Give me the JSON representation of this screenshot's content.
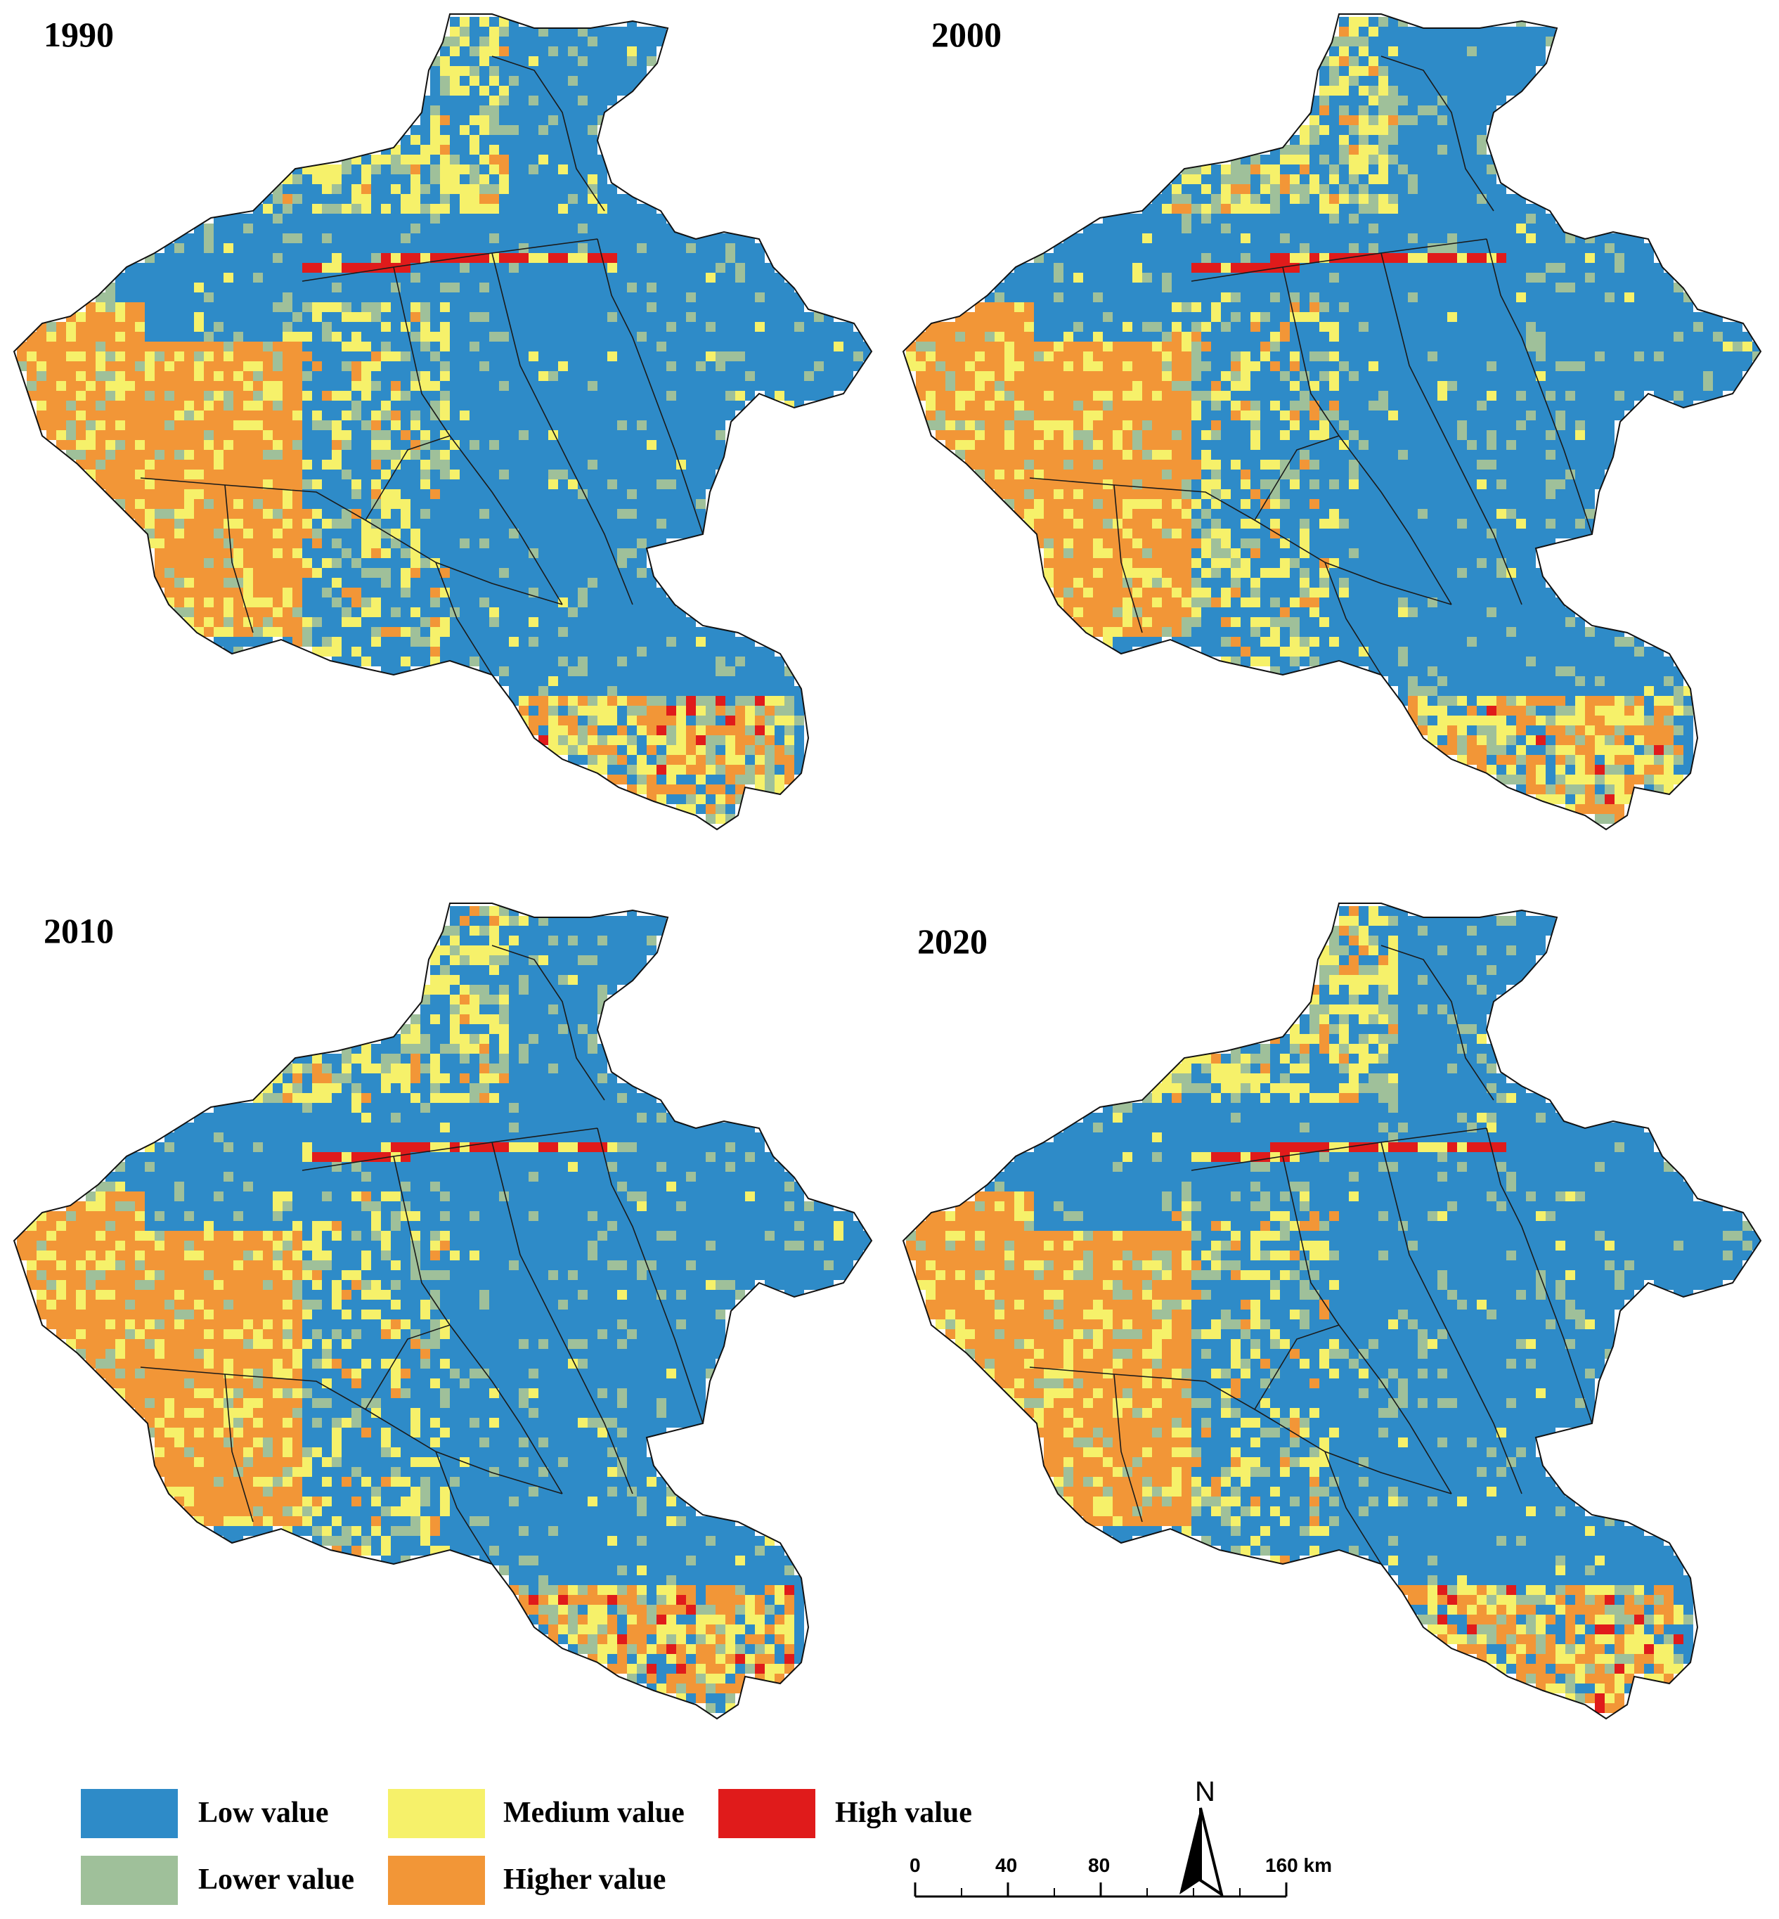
{
  "panels": [
    {
      "year": "1990"
    },
    {
      "year": "2000"
    },
    {
      "year": "2010"
    },
    {
      "year": "2020"
    }
  ],
  "legend": {
    "items": [
      {
        "label": "Low value",
        "color": "#2e8bc8"
      },
      {
        "label": "Lower value",
        "color": "#9fc09a"
      },
      {
        "label": "Medium value",
        "color": "#f6f16a"
      },
      {
        "label": "Higher value",
        "color": "#f29637"
      },
      {
        "label": "High value",
        "color": "#e01b1b"
      }
    ]
  },
  "north_arrow": {
    "label": "N",
    "icon": "north-arrow-icon"
  },
  "scale_bar": {
    "ticks": [
      "0",
      "40",
      "80",
      "160 km"
    ]
  }
}
